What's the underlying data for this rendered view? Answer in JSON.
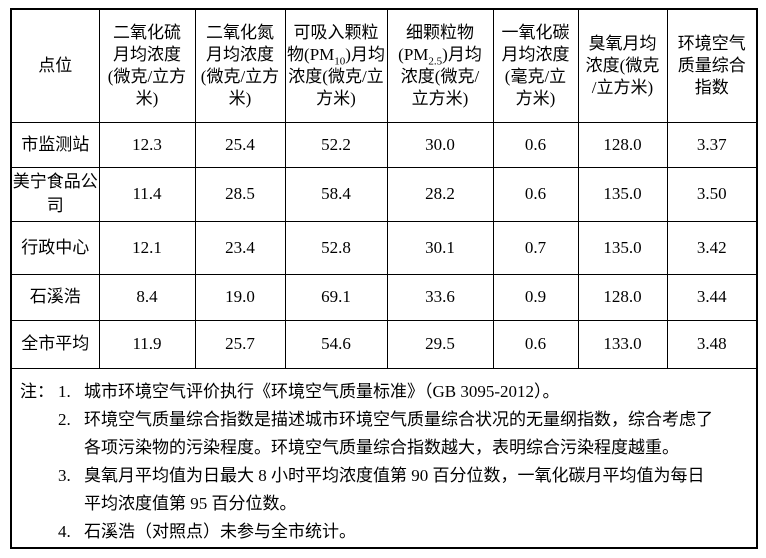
{
  "table": {
    "columns": [
      {
        "lines": [
          {
            "pre": "点位",
            "sub": "",
            "post": ""
          }
        ]
      },
      {
        "lines": [
          {
            "pre": "二氧化硫",
            "sub": "",
            "post": ""
          },
          {
            "pre": "月均浓度",
            "sub": "",
            "post": ""
          },
          {
            "pre": "(微克/立方",
            "sub": "",
            "post": ""
          },
          {
            "pre": "米)",
            "sub": "",
            "post": ""
          }
        ]
      },
      {
        "lines": [
          {
            "pre": "二氧化氮",
            "sub": "",
            "post": ""
          },
          {
            "pre": "月均浓度",
            "sub": "",
            "post": ""
          },
          {
            "pre": "(微克/立方",
            "sub": "",
            "post": ""
          },
          {
            "pre": "米)",
            "sub": "",
            "post": ""
          }
        ]
      },
      {
        "lines": [
          {
            "pre": "可吸入颗粒",
            "sub": "",
            "post": ""
          },
          {
            "pre": "物(PM",
            "sub": "10",
            "post": ")月均"
          },
          {
            "pre": "浓度(微克/立",
            "sub": "",
            "post": ""
          },
          {
            "pre": "方米)",
            "sub": "",
            "post": ""
          }
        ]
      },
      {
        "lines": [
          {
            "pre": "细颗粒物",
            "sub": "",
            "post": ""
          },
          {
            "pre": "(PM",
            "sub": "2.5",
            "post": ")月均"
          },
          {
            "pre": "浓度(微克/",
            "sub": "",
            "post": ""
          },
          {
            "pre": "立方米)",
            "sub": "",
            "post": ""
          }
        ]
      },
      {
        "lines": [
          {
            "pre": "一氧化碳",
            "sub": "",
            "post": ""
          },
          {
            "pre": "月均浓度",
            "sub": "",
            "post": ""
          },
          {
            "pre": "(毫克/立",
            "sub": "",
            "post": ""
          },
          {
            "pre": "方米)",
            "sub": "",
            "post": ""
          }
        ]
      },
      {
        "lines": [
          {
            "pre": "臭氧月均",
            "sub": "",
            "post": ""
          },
          {
            "pre": "浓度(微克",
            "sub": "",
            "post": ""
          },
          {
            "pre": "/立方米)",
            "sub": "",
            "post": ""
          }
        ]
      },
      {
        "lines": [
          {
            "pre": "环境空气",
            "sub": "",
            "post": ""
          },
          {
            "pre": "质量综合",
            "sub": "",
            "post": ""
          },
          {
            "pre": "指数",
            "sub": "",
            "post": ""
          }
        ]
      }
    ],
    "rows": [
      {
        "site": "市监测站",
        "values": [
          "12.3",
          "25.4",
          "52.2",
          "30.0",
          "0.6",
          "128.0",
          "3.37"
        ]
      },
      {
        "site": "美宁食品公司",
        "values": [
          "11.4",
          "28.5",
          "58.4",
          "28.2",
          "0.6",
          "135.0",
          "3.50"
        ]
      },
      {
        "site": "行政中心",
        "values": [
          "12.1",
          "23.4",
          "52.8",
          "30.1",
          "0.7",
          "135.0",
          "3.42"
        ]
      },
      {
        "site": "石溪浩",
        "values": [
          "8.4",
          "19.0",
          "69.1",
          "33.6",
          "0.9",
          "128.0",
          "3.44"
        ]
      },
      {
        "site": "全市平均",
        "values": [
          "11.9",
          "25.7",
          "54.6",
          "29.5",
          "0.6",
          "133.0",
          "3.48"
        ]
      }
    ]
  },
  "notes": {
    "label": "注：",
    "items": [
      {
        "num": "1.",
        "lines": [
          "城市环境空气评价执行《环境空气质量标准》（GB 3095-2012）。"
        ]
      },
      {
        "num": "2.",
        "lines": [
          "环境空气质量综合指数是描述城市环境空气质量综合状况的无量纲指数，综合考虑了",
          "各项污染物的污染程度。环境空气质量综合指数越大，表明综合污染程度越重。"
        ]
      },
      {
        "num": "3.",
        "lines": [
          "臭氧月平均值为日最大 8 小时平均浓度值第 90 百分位数，一氧化碳月平均值为每日",
          "平均浓度值第 95 百分位数。"
        ]
      },
      {
        "num": "4.",
        "lines": [
          "石溪浩（对照点）未参与全市统计。"
        ]
      }
    ]
  }
}
